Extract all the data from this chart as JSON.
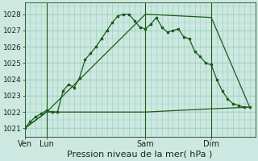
{
  "bg_color": "#cce8e0",
  "grid_color": "#99ccbb",
  "line_color": "#1a5c1a",
  "title": "Pression niveau de la mer( hPa )",
  "ylim": [
    1020.5,
    1028.7
  ],
  "yticks": [
    1021,
    1022,
    1023,
    1024,
    1025,
    1026,
    1027,
    1028
  ],
  "xtick_labels": [
    "Ven",
    "Lun",
    "Sam",
    "Dim"
  ],
  "xtick_positions": [
    0,
    4,
    22,
    34
  ],
  "vline_positions": [
    0,
    4,
    22,
    34
  ],
  "xlim": [
    0,
    42
  ],
  "s1x": [
    0,
    1,
    2,
    3,
    4,
    5,
    6,
    7,
    8,
    9,
    10,
    11,
    12,
    13,
    14,
    15,
    16,
    17,
    18,
    19,
    20,
    21,
    22,
    23,
    24,
    25,
    26,
    27,
    28,
    29,
    30,
    31,
    32,
    33,
    34,
    35,
    36,
    37,
    38,
    39,
    40,
    41
  ],
  "s1y": [
    1021.0,
    1021.4,
    1021.7,
    1021.9,
    1022.1,
    1022.0,
    1022.0,
    1023.3,
    1023.7,
    1023.5,
    1024.1,
    1025.2,
    1025.6,
    1026.0,
    1026.5,
    1027.0,
    1027.5,
    1027.9,
    1028.0,
    1028.0,
    1027.6,
    1027.2,
    1027.1,
    1027.4,
    1027.8,
    1027.2,
    1026.9,
    1027.0,
    1027.1,
    1026.6,
    1026.5,
    1025.7,
    1025.4,
    1025.0,
    1024.9,
    1024.0,
    1023.3,
    1022.8,
    1022.5,
    1022.4,
    1022.3,
    1022.3
  ],
  "s2x": [
    0,
    4,
    22,
    34,
    41
  ],
  "s2y": [
    1021.0,
    1022.0,
    1028.0,
    1027.8,
    1022.3
  ],
  "s3x": [
    0,
    4,
    22,
    34,
    41
  ],
  "s3y": [
    1021.0,
    1022.0,
    1022.0,
    1022.2,
    1022.3
  ],
  "xlabel_fontsize": 8,
  "ytick_fontsize": 6.5,
  "xtick_fontsize": 7
}
